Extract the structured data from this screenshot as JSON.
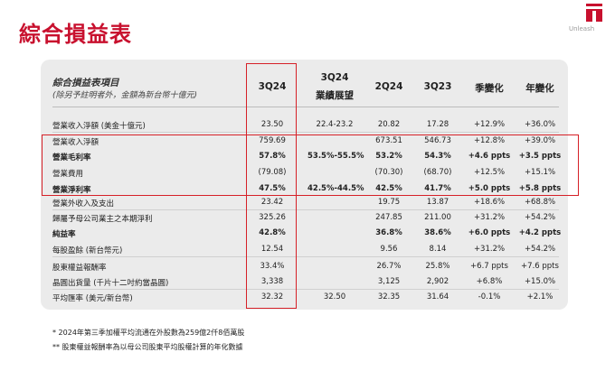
{
  "title": "綜合損益表",
  "logo_text": "Unleash",
  "table": {
    "header_left": "綜合損益表項目",
    "header_left_sub": "(除另予註明者外，金額為新台幣十億元)",
    "columns": [
      "3Q24",
      "3Q24\n業績展望",
      "2Q24",
      "3Q23",
      "季變化",
      "年變化"
    ],
    "col_3q24": "3Q24",
    "col_guide_1": "3Q24",
    "col_guide_2": "業績展望",
    "col_2q24": "2Q24",
    "col_3q23": "3Q23",
    "col_qoq": "季變化",
    "col_yoy": "年變化",
    "rows": [
      {
        "label": "營業收入淨額 (美金十億元)",
        "c1": "23.50",
        "c2": "22.4-23.2",
        "c3": "20.82",
        "c4": "17.28",
        "c5": "+12.9%",
        "c6": "+36.0%",
        "bold": false
      },
      {
        "label": "營業收入淨額",
        "c1": "759.69",
        "c2": "",
        "c3": "673.51",
        "c4": "546.73",
        "c5": "+12.8%",
        "c6": "+39.0%",
        "bold": false
      },
      {
        "label": "營業毛利率",
        "c1": "57.8%",
        "c2": "53.5%-55.5%",
        "c3": "53.2%",
        "c4": "54.3%",
        "c5": "+4.6 ppts",
        "c6": "+3.5 ppts",
        "bold": true
      },
      {
        "label": "營業費用",
        "c1": "(79.08)",
        "c2": "",
        "c3": "(70.30)",
        "c4": "(68.70)",
        "c5": "+12.5%",
        "c6": "+15.1%",
        "bold": false
      },
      {
        "label": "營業淨利率",
        "c1": "47.5%",
        "c2": "42.5%-44.5%",
        "c3": "42.5%",
        "c4": "41.7%",
        "c5": "+5.0 ppts",
        "c6": "+5.8 ppts",
        "bold": true
      },
      {
        "label": "營業外收入及支出",
        "c1": "23.42",
        "c2": "",
        "c3": "19.75",
        "c4": "13.87",
        "c5": "+18.6%",
        "c6": "+68.8%",
        "bold": false
      },
      {
        "label": "歸屬予母公司業主之本期淨利",
        "c1": "325.26",
        "c2": "",
        "c3": "247.85",
        "c4": "211.00",
        "c5": "+31.2%",
        "c6": "+54.2%",
        "bold": false
      },
      {
        "label": "純益率",
        "c1": "42.8%",
        "c2": "",
        "c3": "36.8%",
        "c4": "38.6%",
        "c5": "+6.0 ppts",
        "c6": "+4.2 ppts",
        "bold": true
      },
      {
        "label": "每股盈餘 (新台幣元)",
        "c1": "12.54",
        "c2": "",
        "c3": "9.56",
        "c4": "8.14",
        "c5": "+31.2%",
        "c6": "+54.2%",
        "bold": false
      },
      {
        "label": "股東權益報酬率",
        "c1": "33.4%",
        "c2": "",
        "c3": "26.7%",
        "c4": "25.8%",
        "c5": "+6.7 ppts",
        "c6": "+7.6 ppts",
        "bold": false
      },
      {
        "label": "晶圓出貨量 (千片十二吋約當晶圓)",
        "c1": "3,338",
        "c2": "",
        "c3": "3,125",
        "c4": "2,902",
        "c5": "+6.8%",
        "c6": "+15.0%",
        "bold": false
      },
      {
        "label": "平均匯率 (美元/新台幣)",
        "c1": "32.32",
        "c2": "32.50",
        "c3": "32.35",
        "c4": "31.64",
        "c5": "-0.1%",
        "c6": "+2.1%",
        "bold": false
      }
    ]
  },
  "footnotes": [
    "*  2024年第三季加權平均流通在外股數為259億2仟8佰萬股",
    "** 股東權益報酬率為以母公司股東平均股權計算的年化數據"
  ],
  "colors": {
    "brand_red": "#c8102e",
    "highlight_red": "#d62027",
    "card_bg": "#ebebeb"
  }
}
